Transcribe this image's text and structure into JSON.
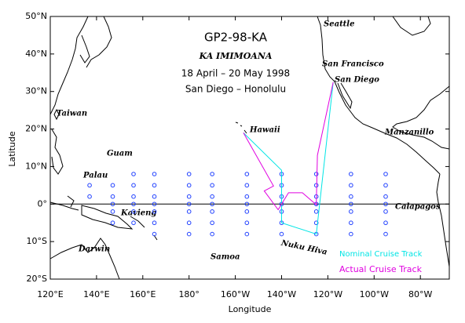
{
  "map": {
    "title": "GP2-98-KA",
    "ship": "KA IMIMOANA",
    "dates": "18 April – 20 May 1998",
    "route": "San Diego – Honolulu",
    "x_label": "Longitude",
    "y_label": "Latitude",
    "xlim": [
      120,
      292.5
    ],
    "ylim": [
      -20,
      50
    ],
    "xticks": [
      {
        "value": 120,
        "label": "120°E"
      },
      {
        "value": 140,
        "label": "140°E"
      },
      {
        "value": 160,
        "label": "160°E"
      },
      {
        "value": 180,
        "label": "180°"
      },
      {
        "value": 200,
        "label": "160°W"
      },
      {
        "value": 220,
        "label": "140°W"
      },
      {
        "value": 240,
        "label": "120°W"
      },
      {
        "value": 260,
        "label": "100°W"
      },
      {
        "value": 280,
        "label": "80°W"
      }
    ],
    "yticks": [
      {
        "value": -20,
        "label": "20°S"
      },
      {
        "value": -10,
        "label": "10°S"
      },
      {
        "value": 0,
        "label": "0°"
      },
      {
        "value": 10,
        "label": "10°N"
      },
      {
        "value": 20,
        "label": "20°N"
      },
      {
        "value": 30,
        "label": "30°N"
      },
      {
        "value": 40,
        "label": "40°N"
      },
      {
        "value": 50,
        "label": "50°N"
      }
    ],
    "places": [
      "Seattle",
      "San Francisco",
      "San Diego",
      "Taiwan",
      "Hawaii",
      "Manzanillo",
      "Guam",
      "Palau",
      "Kavieng",
      "Calapagos",
      "Darwin",
      "Samoa",
      "Nuku Hiva"
    ],
    "tracks": [
      {
        "name": "Nominal Cruise Track",
        "color": "#00e5e5",
        "lon": [
          203.5,
          220,
          220,
          235,
          242.3
        ],
        "lat": [
          19,
          9,
          -5,
          -8,
          32.5
        ]
      },
      {
        "name": "Actual Cruise Track",
        "color": "#e000e0",
        "lon": [
          203.5,
          216.5,
          212.5,
          218.5,
          223,
          229,
          235,
          235,
          235.5,
          242.3
        ],
        "lat": [
          19,
          4.8,
          3.5,
          -1.5,
          3,
          3,
          -0.2,
          0.2,
          13,
          32.5
        ]
      }
    ],
    "station_color": "#2040ff",
    "stations": {
      "lon": [
        137,
        137,
        147,
        147,
        147,
        147,
        147,
        156,
        156,
        156,
        156,
        156,
        156,
        165,
        165,
        165,
        165,
        165,
        165,
        165,
        180,
        180,
        180,
        180,
        180,
        180,
        180,
        190,
        190,
        190,
        190,
        190,
        190,
        190,
        205,
        205,
        205,
        205,
        205,
        205,
        205,
        220,
        220,
        220,
        220,
        220,
        220,
        220,
        235,
        235,
        235,
        235,
        235,
        235,
        235,
        250,
        250,
        250,
        250,
        250,
        250,
        250,
        265,
        265,
        265,
        265,
        265,
        265,
        265
      ],
      "lat": [
        5,
        2,
        5,
        2,
        0,
        -2,
        -5,
        8,
        5,
        2,
        0,
        -2,
        -5,
        8,
        5,
        2,
        0,
        -2,
        -5,
        -8,
        8,
        5,
        2,
        0,
        -2,
        -5,
        -8,
        8,
        5,
        2,
        0,
        -2,
        -5,
        -8,
        8,
        5,
        2,
        0,
        -2,
        -5,
        -8,
        8,
        5,
        2,
        0,
        -2,
        -5,
        -8,
        8,
        5,
        2,
        0,
        -2,
        -5,
        -8,
        8,
        5,
        2,
        0,
        -2,
        -5,
        -8,
        8,
        5,
        2,
        0,
        -2,
        -5,
        -8
      ]
    }
  }
}
